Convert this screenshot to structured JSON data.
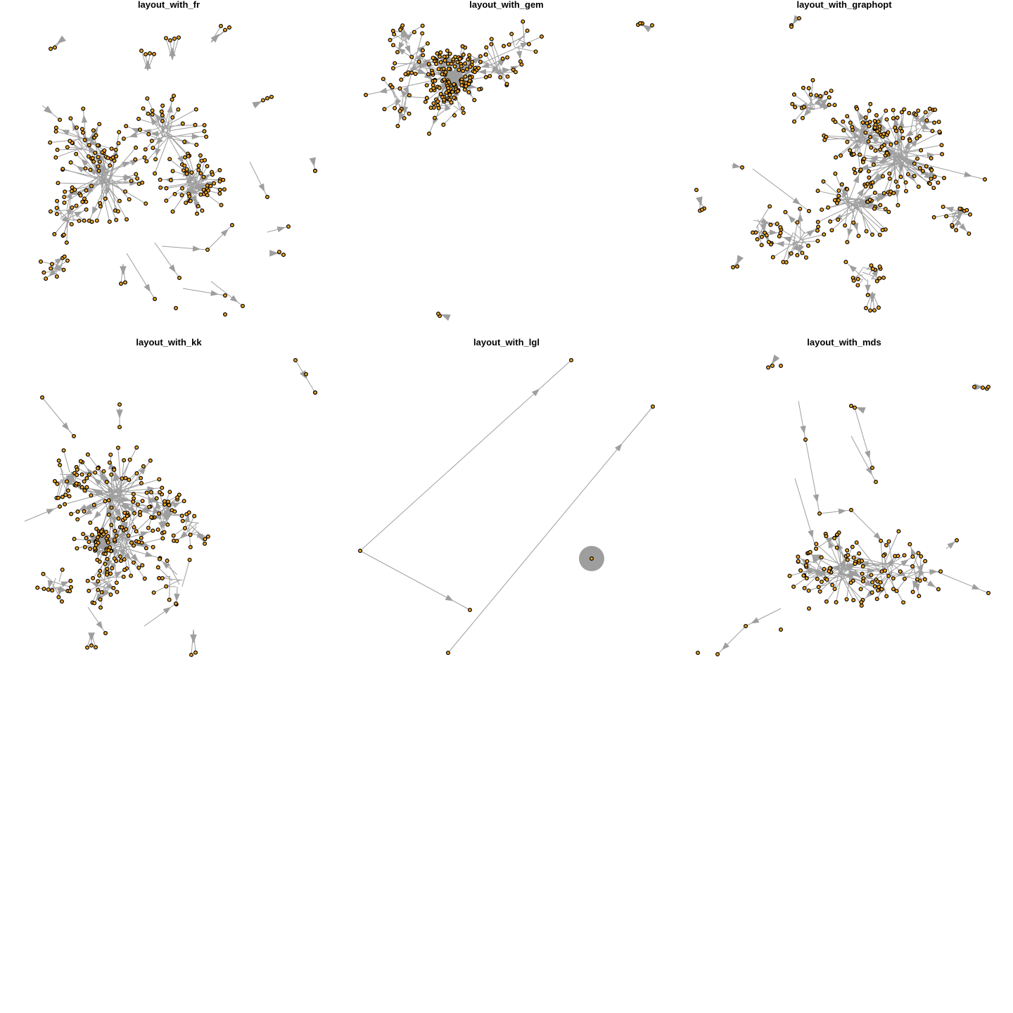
{
  "panels": [
    {
      "id": "fr",
      "title": "layout_with_fr"
    },
    {
      "id": "gem",
      "title": "layout_with_gem"
    },
    {
      "id": "graphopt",
      "title": "layout_with_graphopt"
    },
    {
      "id": "kk",
      "title": "layout_with_kk"
    },
    {
      "id": "lgl",
      "title": "layout_with_lgl"
    },
    {
      "id": "mds",
      "title": "layout_with_mds"
    }
  ],
  "colors": {
    "node_fill": "#f5a623",
    "node_stroke": "#000000",
    "edge": "#9e9e9e",
    "background": "#ffffff"
  }
}
